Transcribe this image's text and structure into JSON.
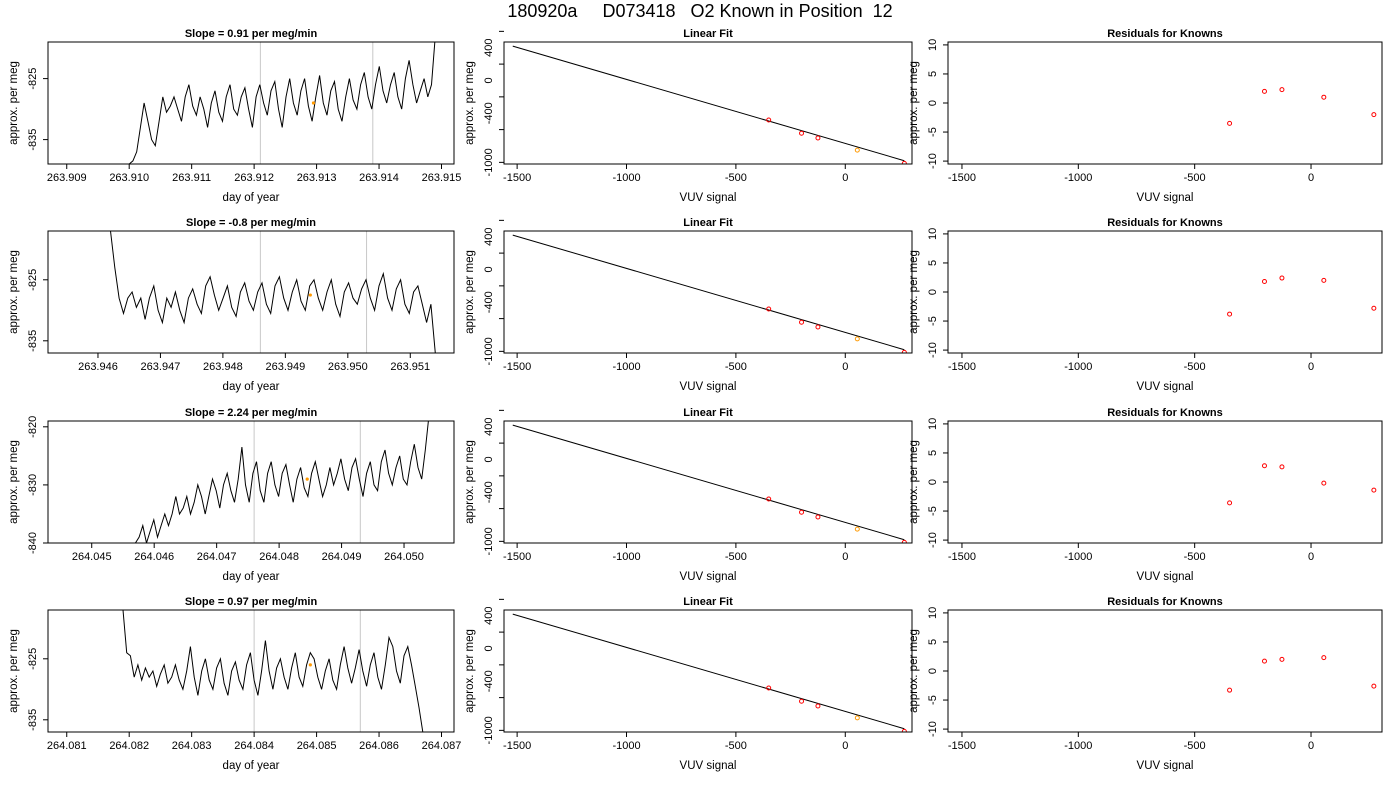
{
  "title": "180920a     D073418   O2 Known in Position  12",
  "colors": {
    "known_point": "#ff0000",
    "sample_point": "#ff9900",
    "line": "#000000",
    "vline": "#c8c8c8"
  },
  "chart_data": [
    {
      "type": "line",
      "title": "Slope =  0.91  per meg/min",
      "xlabel": "day of year",
      "ylabel": "approx. per meg",
      "xticks": [
        "263.909",
        "263.910",
        "263.911",
        "263.912",
        "263.913",
        "263.914",
        "263.915"
      ],
      "yticks": [
        "-835",
        "-825"
      ],
      "xlim": [
        263.9087,
        263.9152
      ],
      "ylim": [
        -839,
        -819
      ],
      "vlines": [
        263.9121,
        263.9139
      ],
      "marker": {
        "x": 263.91295,
        "y": -829
      },
      "trace": {
        "start": 263.91,
        "end": 263.9149,
        "y": [
          -839,
          -838.5,
          -837,
          -833,
          -829,
          -832,
          -835,
          -836,
          -832,
          -828,
          -830.5,
          -829.5,
          -828,
          -830,
          -832,
          -828,
          -826,
          -829.5,
          -831,
          -828,
          -830,
          -833,
          -829,
          -827,
          -830.5,
          -832,
          -828,
          -826,
          -830,
          -831,
          -828,
          -826.5,
          -830,
          -833,
          -828,
          -826,
          -829,
          -831,
          -827,
          -825.5,
          -830,
          -833,
          -828,
          -825,
          -829,
          -831,
          -827,
          -825,
          -829.5,
          -832,
          -828,
          -824.5,
          -829,
          -831,
          -827,
          -825.5,
          -830,
          -832,
          -828,
          -825,
          -828.5,
          -830,
          -826,
          -824,
          -828,
          -830,
          -826,
          -823,
          -827,
          -829,
          -826,
          -824,
          -828,
          -830,
          -825,
          -822,
          -826,
          -829,
          -827,
          -825,
          -828,
          -826,
          -818
        ]
      }
    },
    {
      "type": "scatter",
      "title": "Linear Fit",
      "xlabel": "VUV signal",
      "ylabel": "approx. per meg",
      "xticks": [
        "-1500",
        "-1000",
        "-500",
        "0"
      ],
      "yticks": [
        "-1000",
        "-600",
        "-200",
        "200",
        "600"
      ],
      "ytick_labels": [
        "-1000",
        "-400",
        "0",
        "400"
      ],
      "xlim": [
        -1560,
        305
      ],
      "ylim": [
        -1020,
        470
      ],
      "fit_line": [
        [
          -1520,
          420
        ],
        [
          270,
          -980
        ]
      ],
      "points": [
        [
          -350,
          -483
        ],
        [
          -200,
          -644
        ],
        [
          -125,
          -703
        ],
        [
          55,
          -850
        ],
        [
          270,
          -1013
        ]
      ],
      "sample_index": 3
    },
    {
      "type": "scatter",
      "title": "Residuals for Knowns",
      "xlabel": "VUV signal",
      "ylabel": "approx. per meg",
      "xticks": [
        "-1500",
        "-1000",
        "-500",
        "0"
      ],
      "yticks": [
        "-10",
        "-5",
        "0",
        "5",
        "10"
      ],
      "xlim": [
        -1560,
        305
      ],
      "ylim": [
        -10.5,
        10.5
      ],
      "points": [
        [
          -350,
          -3.5
        ],
        [
          -200,
          2
        ],
        [
          -125,
          2.3
        ],
        [
          55,
          1
        ],
        [
          270,
          -2
        ]
      ]
    },
    {
      "type": "line",
      "title": "Slope =  -0.8  per meg/min",
      "xlabel": "day of year",
      "ylabel": "approx. per meg",
      "xticks": [
        "263.946",
        "263.947",
        "263.948",
        "263.949",
        "263.950",
        "263.951"
      ],
      "yticks": [
        "-835",
        "-825"
      ],
      "xlim": [
        263.9452,
        263.9517
      ],
      "ylim": [
        -837,
        -817
      ],
      "vlines": [
        263.9486,
        263.9503
      ],
      "marker": {
        "x": 263.9494,
        "y": -827.5
      },
      "trace": {
        "start": 263.9462,
        "end": 263.9514,
        "y": [
          -817,
          -823,
          -828,
          -830.5,
          -828,
          -827,
          -829.5,
          -828,
          -831.5,
          -828,
          -826,
          -830,
          -832,
          -828,
          -829.5,
          -827,
          -830,
          -832,
          -828,
          -826.5,
          -829,
          -830.5,
          -826,
          -824.5,
          -827.5,
          -830,
          -828,
          -826,
          -829.5,
          -831,
          -827,
          -825.5,
          -828.5,
          -830,
          -827,
          -825.5,
          -829,
          -830.5,
          -826,
          -824.5,
          -828,
          -830,
          -827,
          -825,
          -828.5,
          -830,
          -826,
          -825,
          -828,
          -830,
          -827,
          -825,
          -829,
          -831,
          -827,
          -825.5,
          -828,
          -829,
          -826.5,
          -825,
          -828,
          -830,
          -826,
          -824,
          -828,
          -830,
          -826.5,
          -825,
          -829,
          -830.5,
          -827,
          -826,
          -829,
          -832,
          -829,
          -837
        ]
      }
    },
    {
      "type": "scatter",
      "title": "Linear Fit",
      "xlabel": "VUV signal",
      "ylabel": "approx. per meg",
      "xticks": [
        "-1500",
        "-1000",
        "-500",
        "0"
      ],
      "yticks": [
        "-1000",
        "-600",
        "-200",
        "200",
        "600"
      ],
      "ytick_labels": [
        "-1000",
        "-400",
        "0",
        "400"
      ],
      "xlim": [
        -1560,
        305
      ],
      "ylim": [
        -1020,
        470
      ],
      "fit_line": [
        [
          -1520,
          420
        ],
        [
          270,
          -980
        ]
      ],
      "points": [
        [
          -350,
          -483
        ],
        [
          -200,
          -644
        ],
        [
          -125,
          -703
        ],
        [
          55,
          -848
        ],
        [
          270,
          -1013
        ]
      ],
      "sample_index": 3
    },
    {
      "type": "scatter",
      "title": "Residuals for Knowns",
      "xlabel": "VUV signal",
      "ylabel": "approx. per meg",
      "xticks": [
        "-1500",
        "-1000",
        "-500",
        "0"
      ],
      "yticks": [
        "-10",
        "-5",
        "0",
        "5",
        "10"
      ],
      "xlim": [
        -1560,
        305
      ],
      "ylim": [
        -10.5,
        10.5
      ],
      "points": [
        [
          -350,
          -3.8
        ],
        [
          -200,
          1.8
        ],
        [
          -125,
          2.4
        ],
        [
          55,
          2
        ],
        [
          270,
          -2.8
        ]
      ]
    },
    {
      "type": "line",
      "title": "Slope =  2.24  per meg/min",
      "xlabel": "day of year",
      "ylabel": "approx. per meg",
      "xticks": [
        "264.045",
        "264.046",
        "264.047",
        "264.048",
        "264.049",
        "264.050"
      ],
      "yticks": [
        "-840",
        "-830",
        "-820"
      ],
      "xlim": [
        264.0443,
        264.0508
      ],
      "ylim": [
        -840,
        -819
      ],
      "vlines": [
        264.0476,
        264.0493
      ],
      "marker": {
        "x": 264.04845,
        "y": -829
      },
      "trace": {
        "start": 264.0457,
        "end": 264.0504,
        "y": [
          -840,
          -839,
          -837,
          -840,
          -838,
          -836,
          -839,
          -837,
          -835,
          -837,
          -835,
          -832,
          -835,
          -834,
          -832,
          -835,
          -833,
          -830,
          -832,
          -835,
          -832,
          -829,
          -831,
          -834,
          -830,
          -828,
          -831,
          -833,
          -829,
          -823.5,
          -830,
          -833,
          -828,
          -826,
          -831,
          -833,
          -828,
          -826,
          -830,
          -832,
          -828,
          -826.5,
          -830,
          -833,
          -829,
          -827,
          -830.5,
          -832,
          -828,
          -826,
          -829,
          -832,
          -830,
          -827,
          -830,
          -828,
          -825.5,
          -829,
          -831,
          -827,
          -825.5,
          -829,
          -832,
          -828,
          -826,
          -830,
          -831,
          -826,
          -824,
          -828,
          -830,
          -827,
          -825,
          -829,
          -830,
          -826,
          -823,
          -827,
          -829,
          -824,
          -818
        ]
      }
    },
    {
      "type": "scatter",
      "title": "Linear Fit",
      "xlabel": "VUV signal",
      "ylabel": "approx. per meg",
      "xticks": [
        "-1500",
        "-1000",
        "-500",
        "0"
      ],
      "yticks": [
        "-1000",
        "-600",
        "-200",
        "200",
        "600"
      ],
      "ytick_labels": [
        "-1000",
        "-400",
        "0",
        "400"
      ],
      "xlim": [
        -1560,
        305
      ],
      "ylim": [
        -1020,
        470
      ],
      "fit_line": [
        [
          -1520,
          420
        ],
        [
          270,
          -980
        ]
      ],
      "points": [
        [
          -350,
          -483
        ],
        [
          -200,
          -644
        ],
        [
          -125,
          -703
        ],
        [
          55,
          -850
        ],
        [
          270,
          -1013
        ]
      ],
      "sample_index": 3
    },
    {
      "type": "scatter",
      "title": "Residuals for Knowns",
      "xlabel": "VUV signal",
      "ylabel": "approx. per meg",
      "xticks": [
        "-1500",
        "-1000",
        "-500",
        "0"
      ],
      "yticks": [
        "-10",
        "-5",
        "0",
        "5",
        "10"
      ],
      "xlim": [
        -1560,
        305
      ],
      "ylim": [
        -10.5,
        10.5
      ],
      "points": [
        [
          -350,
          -3.6
        ],
        [
          -200,
          2.8
        ],
        [
          -125,
          2.6
        ],
        [
          55,
          -0.2
        ],
        [
          270,
          -1.4
        ]
      ]
    },
    {
      "type": "line",
      "title": "Slope =  0.97  per meg/min",
      "xlabel": "day of year",
      "ylabel": "approx. per meg",
      "xticks": [
        "264.081",
        "264.082",
        "264.083",
        "264.084",
        "264.085",
        "264.086",
        "264.087"
      ],
      "yticks": [
        "-835",
        "-825"
      ],
      "xlim": [
        264.0807,
        264.0872
      ],
      "ylim": [
        -837,
        -817
      ],
      "vlines": [
        264.084,
        264.0857
      ],
      "marker": {
        "x": 264.0849,
        "y": -826
      },
      "trace": {
        "start": 264.0819,
        "end": 264.0867,
        "y": [
          -817,
          -824,
          -824.5,
          -828,
          -826,
          -828.5,
          -826.5,
          -828,
          -827,
          -829.5,
          -827.5,
          -826,
          -829,
          -828,
          -826,
          -828.5,
          -830,
          -827,
          -823,
          -828,
          -831,
          -827,
          -825,
          -828.5,
          -830,
          -826.5,
          -825,
          -829,
          -831,
          -827,
          -825.5,
          -828.5,
          -830,
          -826,
          -824,
          -828.5,
          -831,
          -827,
          -822,
          -827,
          -830,
          -826.5,
          -825,
          -828,
          -830,
          -826.5,
          -824,
          -828,
          -829.5,
          -826,
          -824,
          -825,
          -828,
          -830,
          -827,
          -825,
          -828.5,
          -830,
          -826,
          -823,
          -826.5,
          -829,
          -826.5,
          -823.5,
          -827,
          -829.5,
          -826,
          -824,
          -828,
          -830,
          -826,
          -821.5,
          -823,
          -827,
          -829,
          -824.5,
          -823,
          -826,
          -829.5,
          -833,
          -837
        ]
      }
    },
    {
      "type": "scatter",
      "title": "Linear Fit",
      "xlabel": "VUV signal",
      "ylabel": "approx. per meg",
      "xticks": [
        "-1500",
        "-1000",
        "-500",
        "0"
      ],
      "yticks": [
        "-1000",
        "-600",
        "-200",
        "200",
        "600"
      ],
      "ytick_labels": [
        "-1000",
        "-400",
        "0",
        "400"
      ],
      "xlim": [
        -1560,
        305
      ],
      "ylim": [
        -1020,
        470
      ],
      "fit_line": [
        [
          -1520,
          420
        ],
        [
          270,
          -980
        ]
      ],
      "points": [
        [
          -350,
          -483
        ],
        [
          -200,
          -644
        ],
        [
          -125,
          -703
        ],
        [
          55,
          -848
        ],
        [
          270,
          -1013
        ]
      ],
      "sample_index": 3
    },
    {
      "type": "scatter",
      "title": "Residuals for Knowns",
      "xlabel": "VUV signal",
      "ylabel": "approx. per meg",
      "xticks": [
        "-1500",
        "-1000",
        "-500",
        "0"
      ],
      "yticks": [
        "-10",
        "-5",
        "0",
        "5",
        "10"
      ],
      "xlim": [
        -1560,
        305
      ],
      "ylim": [
        -10.5,
        10.5
      ],
      "points": [
        [
          -350,
          -3.3
        ],
        [
          -200,
          1.7
        ],
        [
          -125,
          2
        ],
        [
          55,
          2.3
        ],
        [
          270,
          -2.6
        ]
      ]
    }
  ]
}
